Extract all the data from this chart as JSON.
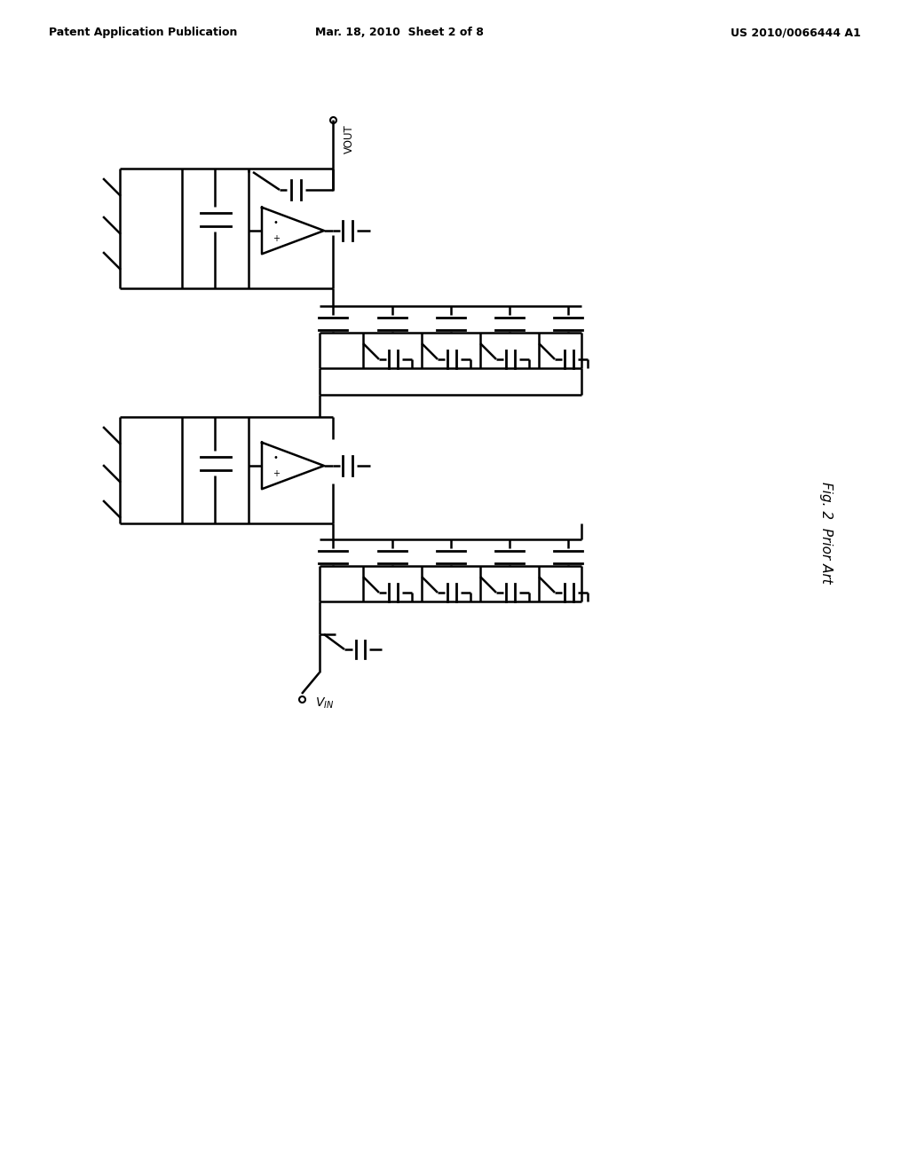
{
  "background_color": "#ffffff",
  "header_left": "Patent Application Publication",
  "header_mid": "Mar. 18, 2010  Sheet 2 of 8",
  "header_right": "US 2010/0066444 A1",
  "fig_label": "Fig. 2  Prior Art",
  "line_color": "#000000",
  "line_width": 1.8,
  "page_width": 10.24,
  "page_height": 13.2
}
